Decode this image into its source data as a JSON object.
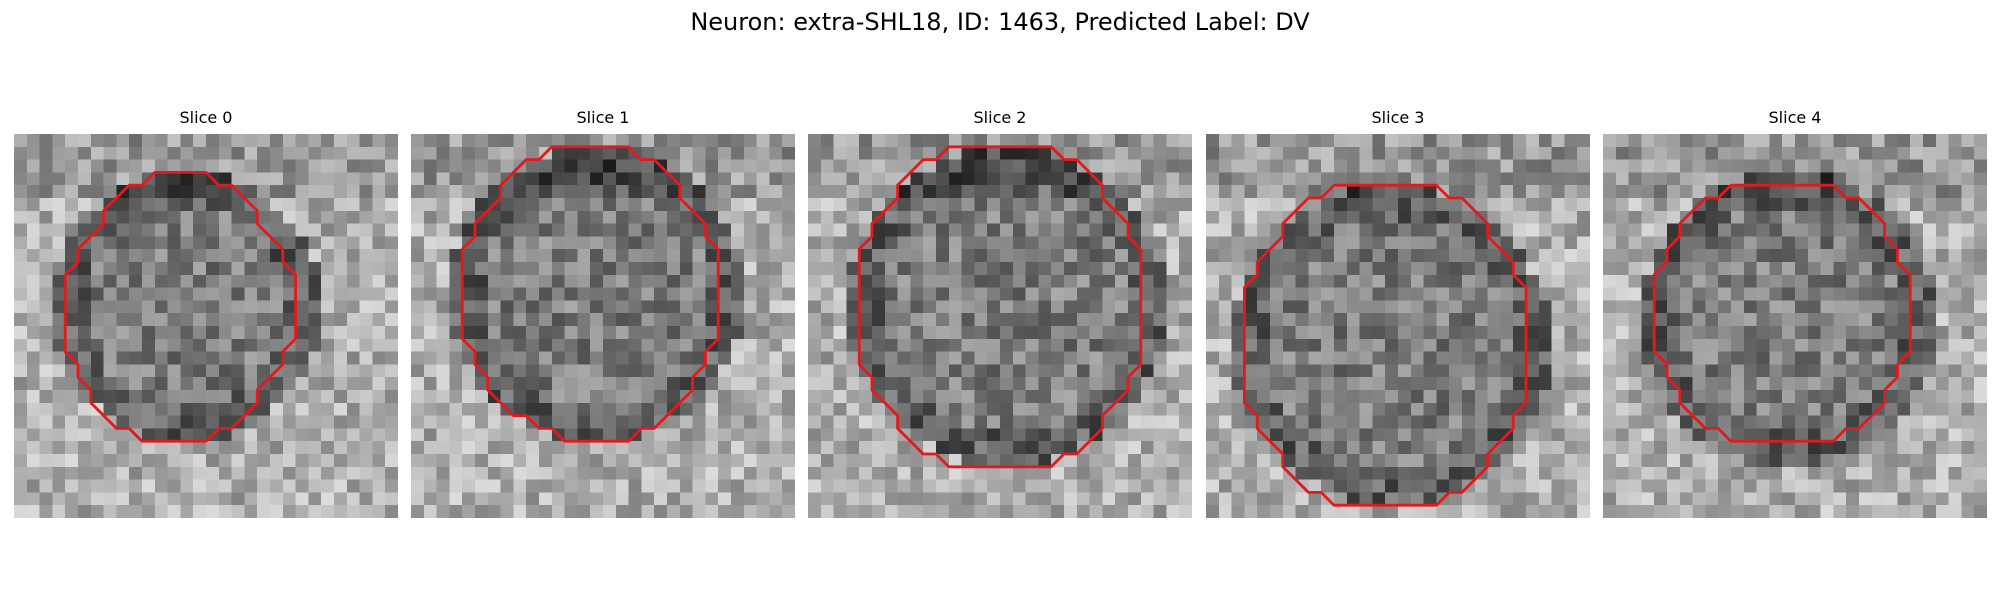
{
  "figure": {
    "title": "Neuron: extra-SHL18, ID: 1463, Predicted Label: DV"
  },
  "colors": {
    "outline": "#e31a1c"
  },
  "slices": [
    {
      "title": "Slice 0",
      "icon": "grayscale-microscopy-patch",
      "outline": [
        [
          11,
          3
        ],
        [
          15,
          3
        ],
        [
          16,
          4
        ],
        [
          17,
          4
        ],
        [
          19,
          6
        ],
        [
          19,
          7
        ],
        [
          21,
          9
        ],
        [
          21,
          10
        ],
        [
          22,
          11
        ],
        [
          22,
          16
        ],
        [
          21,
          17
        ],
        [
          21,
          18
        ],
        [
          19,
          20
        ],
        [
          19,
          21
        ],
        [
          17,
          23
        ],
        [
          16,
          23
        ],
        [
          15,
          24
        ],
        [
          10,
          24
        ],
        [
          9,
          23
        ],
        [
          8,
          23
        ],
        [
          6,
          21
        ],
        [
          6,
          20
        ],
        [
          5,
          19
        ],
        [
          5,
          18
        ],
        [
          4,
          17
        ],
        [
          4,
          11
        ],
        [
          5,
          10
        ],
        [
          5,
          9
        ],
        [
          7,
          7
        ],
        [
          7,
          6
        ],
        [
          9,
          4
        ],
        [
          10,
          4
        ]
      ]
    },
    {
      "title": "Slice 1",
      "icon": "grayscale-microscopy-patch",
      "outline": [
        [
          11,
          1
        ],
        [
          17,
          1
        ],
        [
          18,
          2
        ],
        [
          19,
          2
        ],
        [
          21,
          4
        ],
        [
          21,
          5
        ],
        [
          23,
          7
        ],
        [
          23,
          8
        ],
        [
          24,
          9
        ],
        [
          24,
          16
        ],
        [
          23,
          17
        ],
        [
          23,
          18
        ],
        [
          22,
          19
        ],
        [
          22,
          20
        ],
        [
          19,
          23
        ],
        [
          18,
          23
        ],
        [
          17,
          24
        ],
        [
          12,
          24
        ],
        [
          11,
          23
        ],
        [
          10,
          23
        ],
        [
          9,
          22
        ],
        [
          8,
          22
        ],
        [
          6,
          20
        ],
        [
          6,
          19
        ],
        [
          5,
          18
        ],
        [
          5,
          17
        ],
        [
          4,
          16
        ],
        [
          4,
          9
        ],
        [
          5,
          8
        ],
        [
          5,
          7
        ],
        [
          7,
          5
        ],
        [
          7,
          4
        ],
        [
          9,
          2
        ],
        [
          10,
          2
        ]
      ]
    },
    {
      "title": "Slice 2",
      "icon": "grayscale-microscopy-patch",
      "outline": [
        [
          11,
          1
        ],
        [
          19,
          1
        ],
        [
          20,
          2
        ],
        [
          21,
          2
        ],
        [
          23,
          4
        ],
        [
          23,
          5
        ],
        [
          25,
          7
        ],
        [
          25,
          8
        ],
        [
          26,
          9
        ],
        [
          26,
          18
        ],
        [
          25,
          19
        ],
        [
          25,
          20
        ],
        [
          23,
          22
        ],
        [
          23,
          23
        ],
        [
          21,
          25
        ],
        [
          20,
          25
        ],
        [
          19,
          26
        ],
        [
          11,
          26
        ],
        [
          10,
          25
        ],
        [
          9,
          25
        ],
        [
          7,
          23
        ],
        [
          7,
          22
        ],
        [
          5,
          20
        ],
        [
          5,
          19
        ],
        [
          4,
          18
        ],
        [
          4,
          9
        ],
        [
          5,
          8
        ],
        [
          5,
          7
        ],
        [
          7,
          5
        ],
        [
          7,
          4
        ],
        [
          9,
          2
        ],
        [
          10,
          2
        ]
      ]
    },
    {
      "title": "Slice 3",
      "icon": "grayscale-microscopy-patch",
      "outline": [
        [
          10,
          4
        ],
        [
          18,
          4
        ],
        [
          19,
          5
        ],
        [
          20,
          5
        ],
        [
          22,
          7
        ],
        [
          22,
          8
        ],
        [
          24,
          10
        ],
        [
          24,
          11
        ],
        [
          25,
          12
        ],
        [
          25,
          21
        ],
        [
          24,
          22
        ],
        [
          24,
          23
        ],
        [
          22,
          25
        ],
        [
          22,
          26
        ],
        [
          20,
          28
        ],
        [
          19,
          28
        ],
        [
          18,
          29
        ],
        [
          10,
          29
        ],
        [
          9,
          28
        ],
        [
          8,
          28
        ],
        [
          6,
          26
        ],
        [
          6,
          25
        ],
        [
          4,
          23
        ],
        [
          4,
          22
        ],
        [
          3,
          21
        ],
        [
          3,
          12
        ],
        [
          4,
          11
        ],
        [
          4,
          10
        ],
        [
          6,
          8
        ],
        [
          6,
          7
        ],
        [
          8,
          5
        ],
        [
          9,
          5
        ]
      ]
    },
    {
      "title": "Slice 4",
      "icon": "grayscale-microscopy-patch",
      "outline": [
        [
          10,
          4
        ],
        [
          18,
          4
        ],
        [
          19,
          5
        ],
        [
          20,
          5
        ],
        [
          22,
          7
        ],
        [
          22,
          8
        ],
        [
          23,
          9
        ],
        [
          23,
          10
        ],
        [
          24,
          11
        ],
        [
          24,
          17
        ],
        [
          23,
          18
        ],
        [
          23,
          19
        ],
        [
          22,
          20
        ],
        [
          22,
          21
        ],
        [
          20,
          23
        ],
        [
          19,
          23
        ],
        [
          18,
          24
        ],
        [
          10,
          24
        ],
        [
          9,
          23
        ],
        [
          8,
          23
        ],
        [
          6,
          21
        ],
        [
          6,
          20
        ],
        [
          5,
          19
        ],
        [
          5,
          18
        ],
        [
          4,
          17
        ],
        [
          4,
          11
        ],
        [
          5,
          10
        ],
        [
          5,
          9
        ],
        [
          6,
          8
        ],
        [
          6,
          7
        ],
        [
          8,
          5
        ],
        [
          9,
          5
        ]
      ]
    }
  ]
}
